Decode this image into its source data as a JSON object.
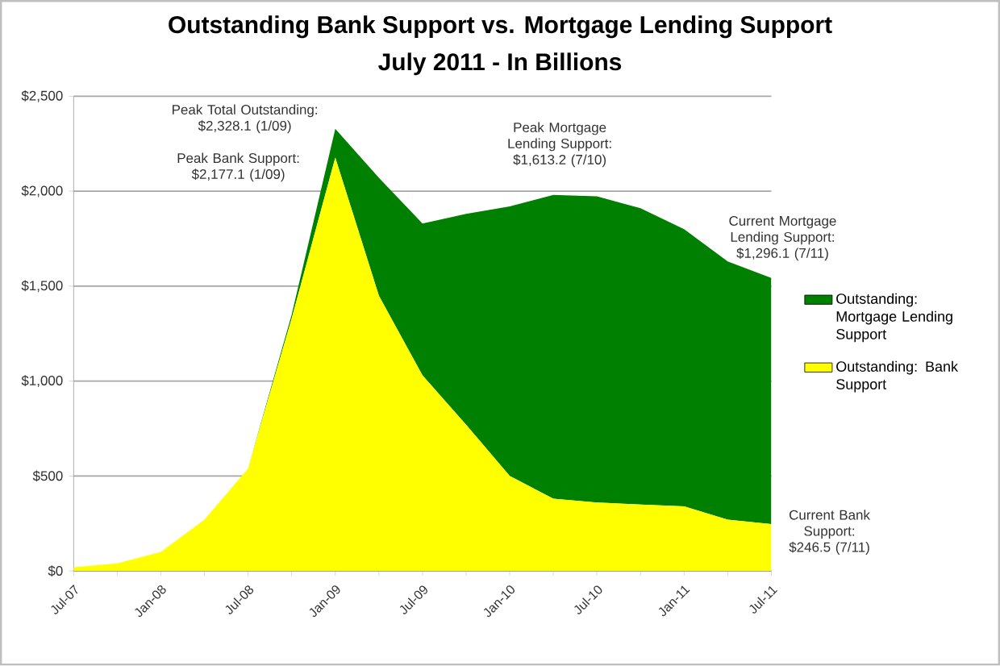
{
  "chart_data": {
    "type": "area",
    "stacked": true,
    "title": "Outstanding Bank Support vs. Mortgage Lending Support",
    "subtitle": "July 2011 - In Billions",
    "categories": [
      "Jul-07",
      null,
      "Jan-08",
      null,
      "Jul-08",
      null,
      "Jan-09",
      null,
      "Jul-09",
      null,
      "Jan-10",
      null,
      "Jul-10",
      null,
      "Jan-11",
      null,
      "Jul-11"
    ],
    "series": [
      {
        "name": "Outstanding: Bank Support",
        "color": "#ffff00",
        "values": [
          20,
          40,
          100,
          270,
          540,
          1330,
          2177.1,
          1450,
          1030,
          770,
          500,
          380,
          360,
          350,
          340,
          270,
          246.5
        ]
      },
      {
        "name": "Outstanding: Mortgage Lending Support",
        "color": "#008000",
        "values": [
          0,
          0,
          0,
          0,
          0,
          20,
          151.0,
          620,
          800,
          1110,
          1420,
          1600,
          1613.2,
          1560,
          1460,
          1360,
          1296.1
        ]
      }
    ],
    "ylim": [
      0,
      2500
    ],
    "yticks": [
      {
        "value": 0,
        "label": "$0"
      },
      {
        "value": 500,
        "label": "$500"
      },
      {
        "value": 1000,
        "label": "$1,000"
      },
      {
        "value": 1500,
        "label": "$1,500"
      },
      {
        "value": 2000,
        "label": "$2,000"
      },
      {
        "value": 2500,
        "label": "$2,500"
      }
    ],
    "grid": "y",
    "legend": "right",
    "annotations": [
      "Peak Total Outstanding: $2,328.1 (1/09)",
      "Peak Bank Support: $2,177.1 (1/09)",
      "Peak Mortgage Lending Support: $1,613.2 (7/10)",
      "Current Mortgage Lending Support: $1,296.1 (7/11)",
      "Current Bank Support: $246.5 (7/11)"
    ]
  }
}
